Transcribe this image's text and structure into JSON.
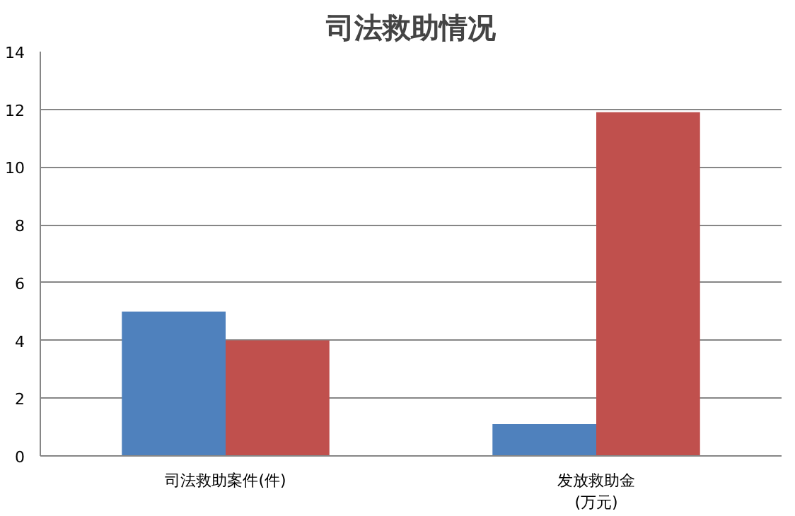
{
  "chart_data": {
    "type": "bar",
    "title": "司法救助情况",
    "categories": [
      "司法救助案件(件)",
      "发放救助金\n(万元)"
    ],
    "series": [
      {
        "color": "#4f81bd",
        "values": [
          5,
          1.1
        ]
      },
      {
        "color": "#c0504d",
        "values": [
          4,
          11.9
        ]
      }
    ],
    "ylim": [
      0,
      14
    ],
    "yticks": [
      0,
      2,
      4,
      6,
      8,
      10,
      12,
      14
    ],
    "grid": "y"
  }
}
